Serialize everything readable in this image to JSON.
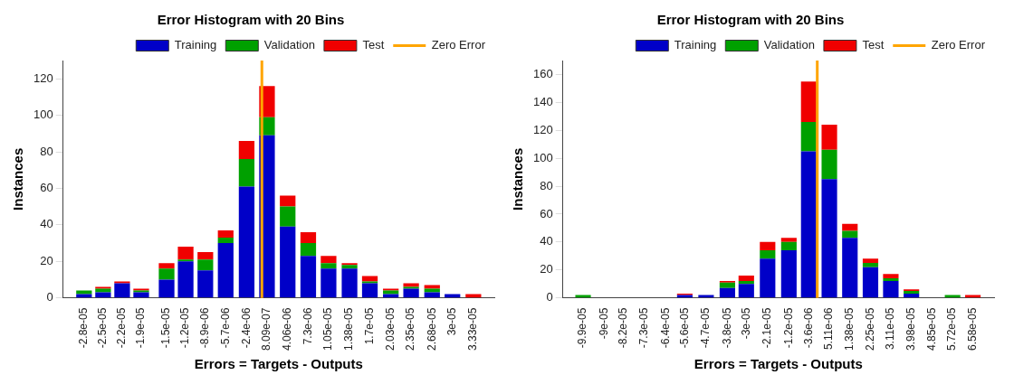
{
  "chart_data": [
    {
      "type": "bar",
      "title": "Error Histogram with 20 Bins",
      "xlabel": "Errors = Targets - Outputs",
      "ylabel": "Instances",
      "stacked": true,
      "legend": "top right",
      "grid": false,
      "x": [
        -2.8e-05,
        -2.5e-05,
        -2.2e-05,
        -1.9e-05,
        -1.5e-05,
        -1.2e-05,
        -8.9e-06,
        -5.7e-06,
        -2.4e-06,
        8.09e-07,
        4.06e-06,
        7.3e-06,
        1.05e-05,
        1.38e-05,
        1.7e-05,
        2.03e-05,
        2.35e-05,
        2.68e-05,
        3e-05,
        3.33e-05
      ],
      "xlim": [
        -2.96e-05,
        3.49e-05
      ],
      "xticks": [
        {
          "value": -2.8e-05,
          "label": "-2.8e-05"
        },
        {
          "value": -2.5e-05,
          "label": "-2.5e-05"
        },
        {
          "value": -2.2e-05,
          "label": "-2.2e-05"
        },
        {
          "value": -1.9e-05,
          "label": "-1.9e-05"
        },
        {
          "value": -1.5e-05,
          "label": "-1.5e-05"
        },
        {
          "value": -1.2e-05,
          "label": "-1.2e-05"
        },
        {
          "value": -8.9e-06,
          "label": "-8.9e-06"
        },
        {
          "value": -5.7e-06,
          "label": "-5.7e-06"
        },
        {
          "value": -2.4e-06,
          "label": "-2.4e-06"
        },
        {
          "value": 8.09e-07,
          "label": "8.09e-07"
        },
        {
          "value": 4.06e-06,
          "label": "4.06e-06"
        },
        {
          "value": 7.3e-06,
          "label": "7.3e-06"
        },
        {
          "value": 1.05e-05,
          "label": "1.05e-05"
        },
        {
          "value": 1.38e-05,
          "label": "1.38e-05"
        },
        {
          "value": 1.7e-05,
          "label": "1.7e-05"
        },
        {
          "value": 2.03e-05,
          "label": "2.03e-05"
        },
        {
          "value": 2.35e-05,
          "label": "2.35e-05"
        },
        {
          "value": 2.68e-05,
          "label": "2.68e-05"
        },
        {
          "value": 3e-05,
          "label": "3e-05"
        },
        {
          "value": 3.33e-05,
          "label": "3.33e-05"
        }
      ],
      "ylim": [
        0,
        130
      ],
      "yticks": [
        0,
        20,
        40,
        60,
        80,
        100,
        120
      ],
      "series": [
        {
          "name": "Training",
          "color": "#0000c8",
          "values": [
            2,
            3,
            8,
            3,
            10,
            20,
            15,
            30,
            61,
            89,
            39,
            23,
            16,
            16,
            8,
            2,
            5,
            3,
            2,
            0
          ]
        },
        {
          "name": "Validation",
          "color": "#00a000",
          "values": [
            2,
            2,
            0,
            1,
            6,
            1,
            6,
            3,
            15,
            10,
            11,
            7,
            3,
            2,
            1,
            2,
            1,
            2,
            0,
            0
          ]
        },
        {
          "name": "Test",
          "color": "#f00000",
          "values": [
            0,
            1,
            1,
            1,
            3,
            7,
            4,
            4,
            10,
            17,
            6,
            6,
            4,
            1,
            3,
            1,
            2,
            2,
            0,
            2
          ]
        }
      ],
      "ref_lines": [
        {
          "axis": "x",
          "value": 0,
          "label": "Zero Error",
          "color": "#ffa500"
        }
      ]
    },
    {
      "type": "bar",
      "title": "Error Histogram with 20 Bins",
      "xlabel": "Errors = Targets - Outputs",
      "ylabel": "Instances",
      "stacked": true,
      "legend": "top right",
      "grid": false,
      "x": [
        -9.9e-05,
        -9e-05,
        -8.2e-05,
        -7.3e-05,
        -6.4e-05,
        -5.6e-05,
        -4.7e-05,
        -3.8e-05,
        -3e-05,
        -2.1e-05,
        -1.2e-05,
        -3.6e-06,
        5.11e-06,
        1.38e-05,
        2.25e-05,
        3.11e-05,
        3.98e-05,
        4.85e-05,
        5.72e-05,
        6.58e-05
      ],
      "xlim": [
        -0.000103,
        7.02e-05
      ],
      "xticks": [
        {
          "value": -9.9e-05,
          "label": "-9.9e-05"
        },
        {
          "value": -9e-05,
          "label": "-9e-05"
        },
        {
          "value": -8.2e-05,
          "label": "-8.2e-05"
        },
        {
          "value": -7.3e-05,
          "label": "-7.3e-05"
        },
        {
          "value": -6.4e-05,
          "label": "-6.4e-05"
        },
        {
          "value": -5.6e-05,
          "label": "-5.6e-05"
        },
        {
          "value": -4.7e-05,
          "label": "-4.7e-05"
        },
        {
          "value": -3.8e-05,
          "label": "-3.8e-05"
        },
        {
          "value": -3e-05,
          "label": "-3e-05"
        },
        {
          "value": -2.1e-05,
          "label": "-2.1e-05"
        },
        {
          "value": -1.2e-05,
          "label": "-1.2e-05"
        },
        {
          "value": -3.6e-06,
          "label": "-3.6e-06"
        },
        {
          "value": 5.11e-06,
          "label": "5.11e-06"
        },
        {
          "value": 1.38e-05,
          "label": "1.38e-05"
        },
        {
          "value": 2.25e-05,
          "label": "2.25e-05"
        },
        {
          "value": 3.11e-05,
          "label": "3.11e-05"
        },
        {
          "value": 3.98e-05,
          "label": "3.98e-05"
        },
        {
          "value": 4.85e-05,
          "label": "4.85e-05"
        },
        {
          "value": 5.72e-05,
          "label": "5.72e-05"
        },
        {
          "value": 6.58e-05,
          "label": "6.58e-05"
        }
      ],
      "ylim": [
        0,
        170
      ],
      "yticks": [
        0,
        20,
        40,
        60,
        80,
        100,
        120,
        140,
        160
      ],
      "series": [
        {
          "name": "Training",
          "color": "#0000c8",
          "values": [
            0,
            0,
            0,
            0,
            0,
            2,
            2,
            7,
            10,
            28,
            34,
            105,
            85,
            43,
            22,
            12,
            3,
            0,
            0,
            0
          ]
        },
        {
          "name": "Validation",
          "color": "#00a000",
          "values": [
            2,
            0,
            0,
            0,
            0,
            0,
            0,
            4,
            2,
            6,
            6,
            21,
            21,
            5,
            3,
            2,
            2,
            0,
            2,
            0
          ]
        },
        {
          "name": "Test",
          "color": "#f00000",
          "values": [
            0,
            0,
            0,
            0,
            0,
            1,
            0,
            1,
            4,
            6,
            3,
            29,
            18,
            5,
            3,
            3,
            1,
            0,
            0,
            2
          ]
        }
      ],
      "ref_lines": [
        {
          "axis": "x",
          "value": 0,
          "label": "Zero Error",
          "color": "#ffa500"
        }
      ]
    }
  ]
}
